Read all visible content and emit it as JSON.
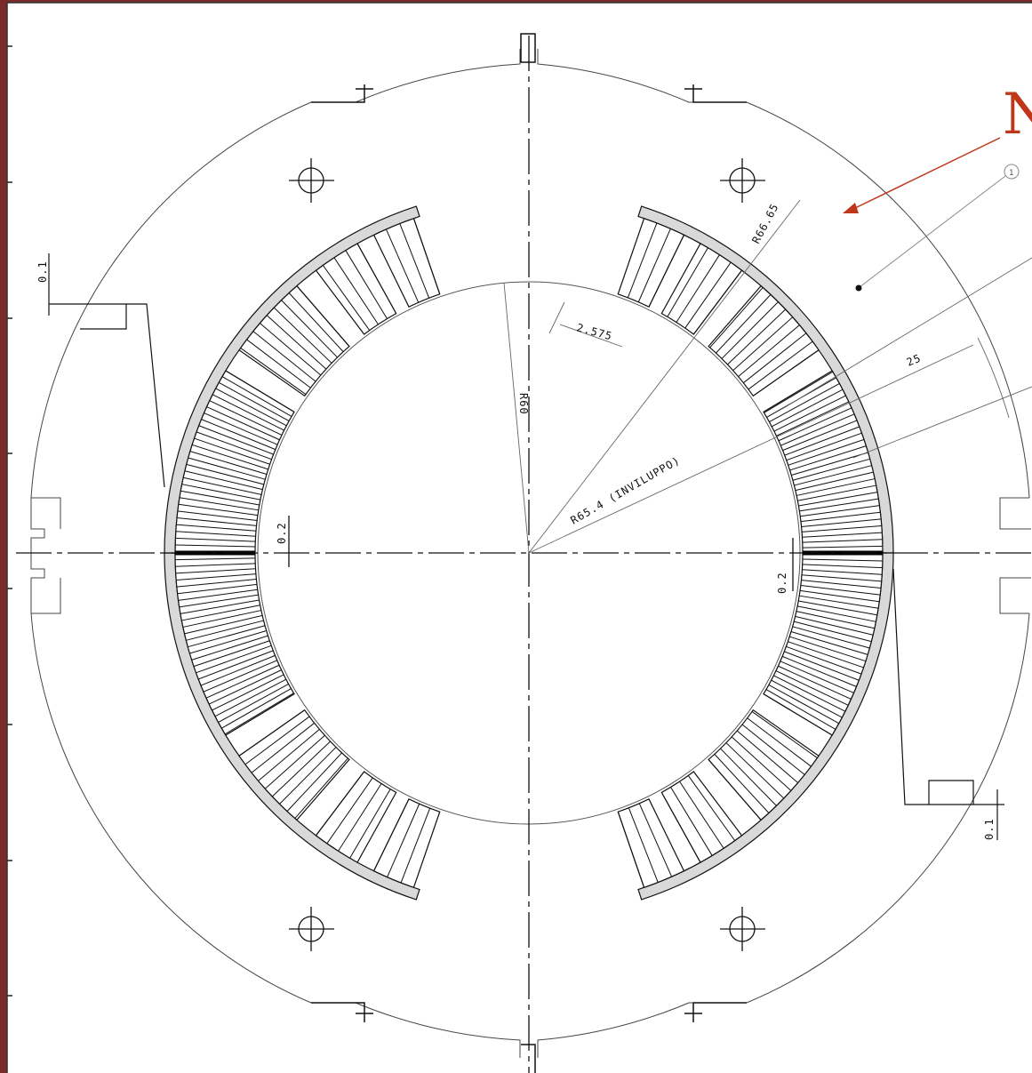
{
  "drawing": {
    "colors": {
      "background_frame": "#7a2a2a",
      "paper": "#ffffff",
      "ink": "#111111",
      "thin_ink": "#555555",
      "insulation": "#d9d9d9",
      "accent": "#c0361a"
    },
    "callout": {
      "text": "N",
      "balloon": "1"
    },
    "dims": {
      "r_outer_coil": "R66.65",
      "shim": "2.575",
      "r_aperture": "R60",
      "r_envelope": "R65.4 (INVILUPPO)",
      "angle": "25",
      "tol_left": "0.2",
      "tol_right": "0.2",
      "tol_top_left": "0.1",
      "tol_bottom_right": "0.1"
    }
  }
}
